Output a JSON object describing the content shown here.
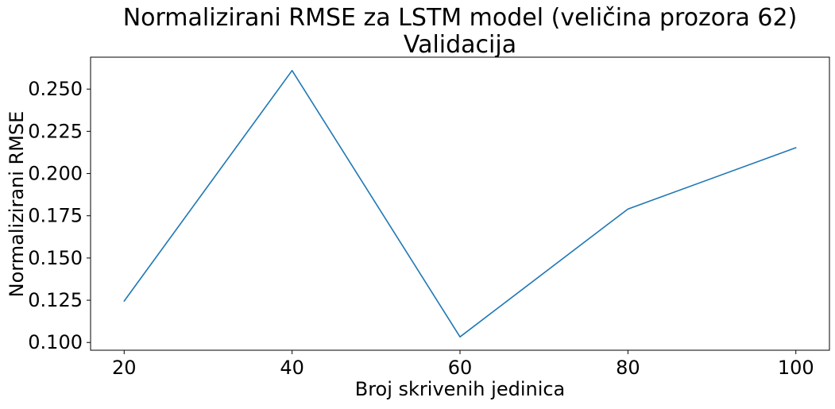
{
  "chart_data": {
    "type": "line",
    "title": "Normalizirani RMSE za LSTM model (veličina prozora 62)",
    "subtitle": "Validacija",
    "xlabel": "Broj skrivenih jedinica",
    "ylabel": "Normalizirani RMSE",
    "x": [
      20,
      40,
      60,
      80,
      100
    ],
    "series": [
      {
        "values": [
          0.1245,
          0.261,
          0.1033,
          0.179,
          0.2153
        ],
        "color": "#1f77b4"
      }
    ],
    "xlim": [
      16,
      104
    ],
    "ylim": [
      0.0954,
      0.2689
    ],
    "xticks": [
      20,
      40,
      60,
      80,
      100
    ],
    "xtick_labels": [
      "20",
      "40",
      "60",
      "80",
      "100"
    ],
    "yticks": [
      0.1,
      0.125,
      0.15,
      0.175,
      0.2,
      0.225,
      0.25
    ],
    "ytick_labels": [
      "0.100",
      "0.125",
      "0.150",
      "0.175",
      "0.200",
      "0.225",
      "0.250"
    ],
    "grid": false,
    "legend": "none"
  }
}
